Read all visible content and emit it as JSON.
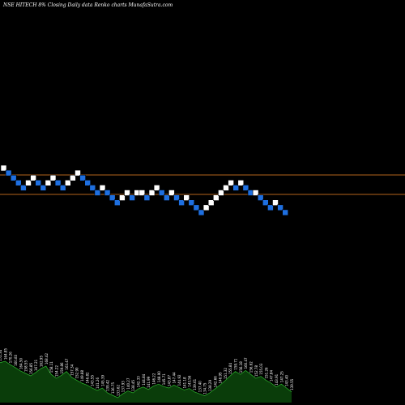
{
  "chart_data": {
    "type": "renko",
    "title": "NSE HITECH 8% Closing Daily data  Renko  charts MunafaSutra.com",
    "reference_lines": [
      {
        "name": "upper",
        "color": "#b5651d"
      },
      {
        "name": "lower",
        "color": "#b5651d"
      }
    ],
    "colors": {
      "background": "#000000",
      "up_brick": "#ffffff",
      "down_brick": "#1e6fe0",
      "brick_border": "#000000",
      "volume_fill": "#0a3d0a",
      "volume_line": "#2db52d",
      "reference_line": "#b5651d"
    },
    "bricks": [
      {
        "dir": "up",
        "level": 0
      },
      {
        "dir": "down",
        "level": -1
      },
      {
        "dir": "down",
        "level": -2
      },
      {
        "dir": "down",
        "level": -3
      },
      {
        "dir": "down",
        "level": -4
      },
      {
        "dir": "up",
        "level": -3
      },
      {
        "dir": "up",
        "level": -2
      },
      {
        "dir": "down",
        "level": -3
      },
      {
        "dir": "down",
        "level": -4
      },
      {
        "dir": "up",
        "level": -3
      },
      {
        "dir": "up",
        "level": -2
      },
      {
        "dir": "down",
        "level": -3
      },
      {
        "dir": "down",
        "level": -4
      },
      {
        "dir": "up",
        "level": -3
      },
      {
        "dir": "up",
        "level": -2
      },
      {
        "dir": "up",
        "level": -1
      },
      {
        "dir": "down",
        "level": -2
      },
      {
        "dir": "down",
        "level": -3
      },
      {
        "dir": "down",
        "level": -4
      },
      {
        "dir": "down",
        "level": -5
      },
      {
        "dir": "up",
        "level": -4
      },
      {
        "dir": "down",
        "level": -5
      },
      {
        "dir": "down",
        "level": -6
      },
      {
        "dir": "down",
        "level": -7
      },
      {
        "dir": "up",
        "level": -6
      },
      {
        "dir": "up",
        "level": -5
      },
      {
        "dir": "down",
        "level": -6
      },
      {
        "dir": "up",
        "level": -5
      },
      {
        "dir": "up",
        "level": -5
      },
      {
        "dir": "down",
        "level": -6
      },
      {
        "dir": "up",
        "level": -5
      },
      {
        "dir": "up",
        "level": -4
      },
      {
        "dir": "down",
        "level": -5
      },
      {
        "dir": "down",
        "level": -6
      },
      {
        "dir": "up",
        "level": -5
      },
      {
        "dir": "down",
        "level": -6
      },
      {
        "dir": "down",
        "level": -7
      },
      {
        "dir": "up",
        "level": -6
      },
      {
        "dir": "down",
        "level": -7
      },
      {
        "dir": "down",
        "level": -8
      },
      {
        "dir": "down",
        "level": -9
      },
      {
        "dir": "up",
        "level": -8
      },
      {
        "dir": "up",
        "level": -7
      },
      {
        "dir": "up",
        "level": -6
      },
      {
        "dir": "up",
        "level": -5
      },
      {
        "dir": "up",
        "level": -4
      },
      {
        "dir": "up",
        "level": -3
      },
      {
        "dir": "down",
        "level": -4
      },
      {
        "dir": "up",
        "level": -3
      },
      {
        "dir": "down",
        "level": -4
      },
      {
        "dir": "down",
        "level": -5
      },
      {
        "dir": "up",
        "level": -5
      },
      {
        "dir": "down",
        "level": -6
      },
      {
        "dir": "down",
        "level": -7
      },
      {
        "dir": "down",
        "level": -8
      },
      {
        "dir": "up",
        "level": -7
      },
      {
        "dir": "down",
        "level": -8
      },
      {
        "dir": "down",
        "level": -9
      }
    ],
    "volume": [
      {
        "label": "172.34",
        "value": 0.82
      },
      {
        "label": "164.85",
        "value": 0.85
      },
      {
        "label": "170.26",
        "value": 0.78
      },
      {
        "label": "160.83",
        "value": 0.72
      },
      {
        "label": "164.50",
        "value": 0.65
      },
      {
        "label": "158.55",
        "value": 0.6
      },
      {
        "label": "156.85",
        "value": 0.55
      },
      {
        "label": "167.21",
        "value": 0.62
      },
      {
        "label": "162.95",
        "value": 0.7
      },
      {
        "label": "168.42",
        "value": 0.75
      },
      {
        "label": "158.11",
        "value": 0.58
      },
      {
        "label": "154.22",
        "value": 0.5
      },
      {
        "label": "159.86",
        "value": 0.56
      },
      {
        "label": "163.47",
        "value": 0.64
      },
      {
        "label": "157.34",
        "value": 0.52
      },
      {
        "label": "152.90",
        "value": 0.46
      },
      {
        "label": "149.88",
        "value": 0.4
      },
      {
        "label": "146.82",
        "value": 0.36
      },
      {
        "label": "143.55",
        "value": 0.3
      },
      {
        "label": "141.26",
        "value": 0.25
      },
      {
        "label": "145.39",
        "value": 0.3
      },
      {
        "label": "139.42",
        "value": 0.2
      },
      {
        "label": "136.75",
        "value": 0.15
      },
      {
        "label": "133.62",
        "value": 0.1
      },
      {
        "label": "137.93",
        "value": 0.18
      },
      {
        "label": "140.27",
        "value": 0.24
      },
      {
        "label": "138.45",
        "value": 0.2
      },
      {
        "label": "142.33",
        "value": 0.28
      },
      {
        "label": "144.84",
        "value": 0.32
      },
      {
        "label": "141.99",
        "value": 0.27
      },
      {
        "label": "146.22",
        "value": 0.34
      },
      {
        "label": "148.90",
        "value": 0.38
      },
      {
        "label": "145.71",
        "value": 0.33
      },
      {
        "label": "143.87",
        "value": 0.3
      },
      {
        "label": "147.44",
        "value": 0.36
      },
      {
        "label": "144.92",
        "value": 0.31
      },
      {
        "label": "141.18",
        "value": 0.26
      },
      {
        "label": "143.56",
        "value": 0.29
      },
      {
        "label": "139.61",
        "value": 0.22
      },
      {
        "label": "137.40",
        "value": 0.18
      },
      {
        "label": "134.75",
        "value": 0.14
      },
      {
        "label": "138.29",
        "value": 0.2
      },
      {
        "label": "142.66",
        "value": 0.28
      },
      {
        "label": "146.95",
        "value": 0.36
      },
      {
        "label": "151.32",
        "value": 0.45
      },
      {
        "label": "155.84",
        "value": 0.55
      },
      {
        "label": "159.71",
        "value": 0.64
      },
      {
        "label": "156.18",
        "value": 0.58
      },
      {
        "label": "160.47",
        "value": 0.66
      },
      {
        "label": "156.62",
        "value": 0.58
      },
      {
        "label": "152.78",
        "value": 0.5
      },
      {
        "label": "155.03",
        "value": 0.54
      },
      {
        "label": "151.26",
        "value": 0.46
      },
      {
        "label": "147.84",
        "value": 0.4
      },
      {
        "label": "143.91",
        "value": 0.32
      },
      {
        "label": "147.25",
        "value": 0.38
      },
      {
        "label": "143.40",
        "value": 0.3
      },
      {
        "label": "139.55",
        "value": 0.22
      }
    ]
  }
}
